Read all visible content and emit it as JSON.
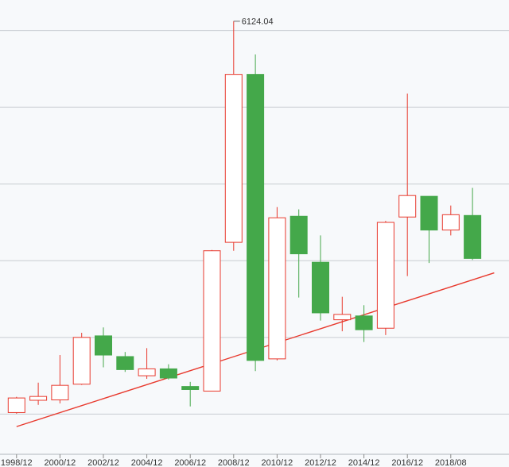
{
  "chart_data": {
    "type": "candlestick",
    "x_tick_labels": [
      "1998/12",
      "2000/12",
      "2002/12",
      "2004/12",
      "2006/12",
      "2008/12",
      "2010/12",
      "2012/12",
      "2014/12",
      "2016/12",
      "2018/08"
    ],
    "y_range": [
      600,
      6400
    ],
    "grid": "horizontal",
    "candles": [
      {
        "o": 1020,
        "c": 1210,
        "h": 1225,
        "l": 1005
      },
      {
        "o": 1180,
        "c": 1230,
        "h": 1410,
        "l": 1120
      },
      {
        "o": 1185,
        "c": 1375,
        "h": 1770,
        "l": 1140
      },
      {
        "o": 1390,
        "c": 2000,
        "h": 2060,
        "l": 1380
      },
      {
        "o": 2020,
        "c": 1770,
        "h": 2130,
        "l": 1610
      },
      {
        "o": 1750,
        "c": 1580,
        "h": 1810,
        "l": 1550
      },
      {
        "o": 1500,
        "c": 1590,
        "h": 1860,
        "l": 1460
      },
      {
        "o": 1590,
        "c": 1470,
        "h": 1650,
        "l": 1450
      },
      {
        "o": 1360,
        "c": 1320,
        "h": 1420,
        "l": 1100
      },
      {
        "o": 1300,
        "c": 3130,
        "h": 3140,
        "l": 1300
      },
      {
        "o": 3240,
        "c": 5430,
        "h": 6124.04,
        "l": 3130
      },
      {
        "o": 5430,
        "c": 1700,
        "h": 5690,
        "l": 1560
      },
      {
        "o": 1720,
        "c": 3560,
        "h": 3700,
        "l": 1700
      },
      {
        "o": 3580,
        "c": 3090,
        "h": 3670,
        "l": 2520
      },
      {
        "o": 2980,
        "c": 2320,
        "h": 3330,
        "l": 2220
      },
      {
        "o": 2230,
        "c": 2300,
        "h": 2530,
        "l": 2080
      },
      {
        "o": 2280,
        "c": 2100,
        "h": 2420,
        "l": 1940
      },
      {
        "o": 2120,
        "c": 3500,
        "h": 3520,
        "l": 2030
      },
      {
        "o": 3570,
        "c": 3850,
        "h": 5180,
        "l": 2800
      },
      {
        "o": 3840,
        "c": 3400,
        "h": 3840,
        "l": 2970
      },
      {
        "o": 3400,
        "c": 3600,
        "h": 3720,
        "l": 3330
      },
      {
        "o": 3590,
        "c": 3030,
        "h": 3950,
        "l": 3010
      }
    ],
    "annotation": "6124.04",
    "trendline": {
      "start": [
        0,
        837
      ],
      "end": [
        22,
        2842
      ]
    }
  },
  "colors": {
    "up": "#e8392d",
    "down": "#44a84a",
    "grid": "#c8cdd2",
    "trend": "#e8392d"
  }
}
